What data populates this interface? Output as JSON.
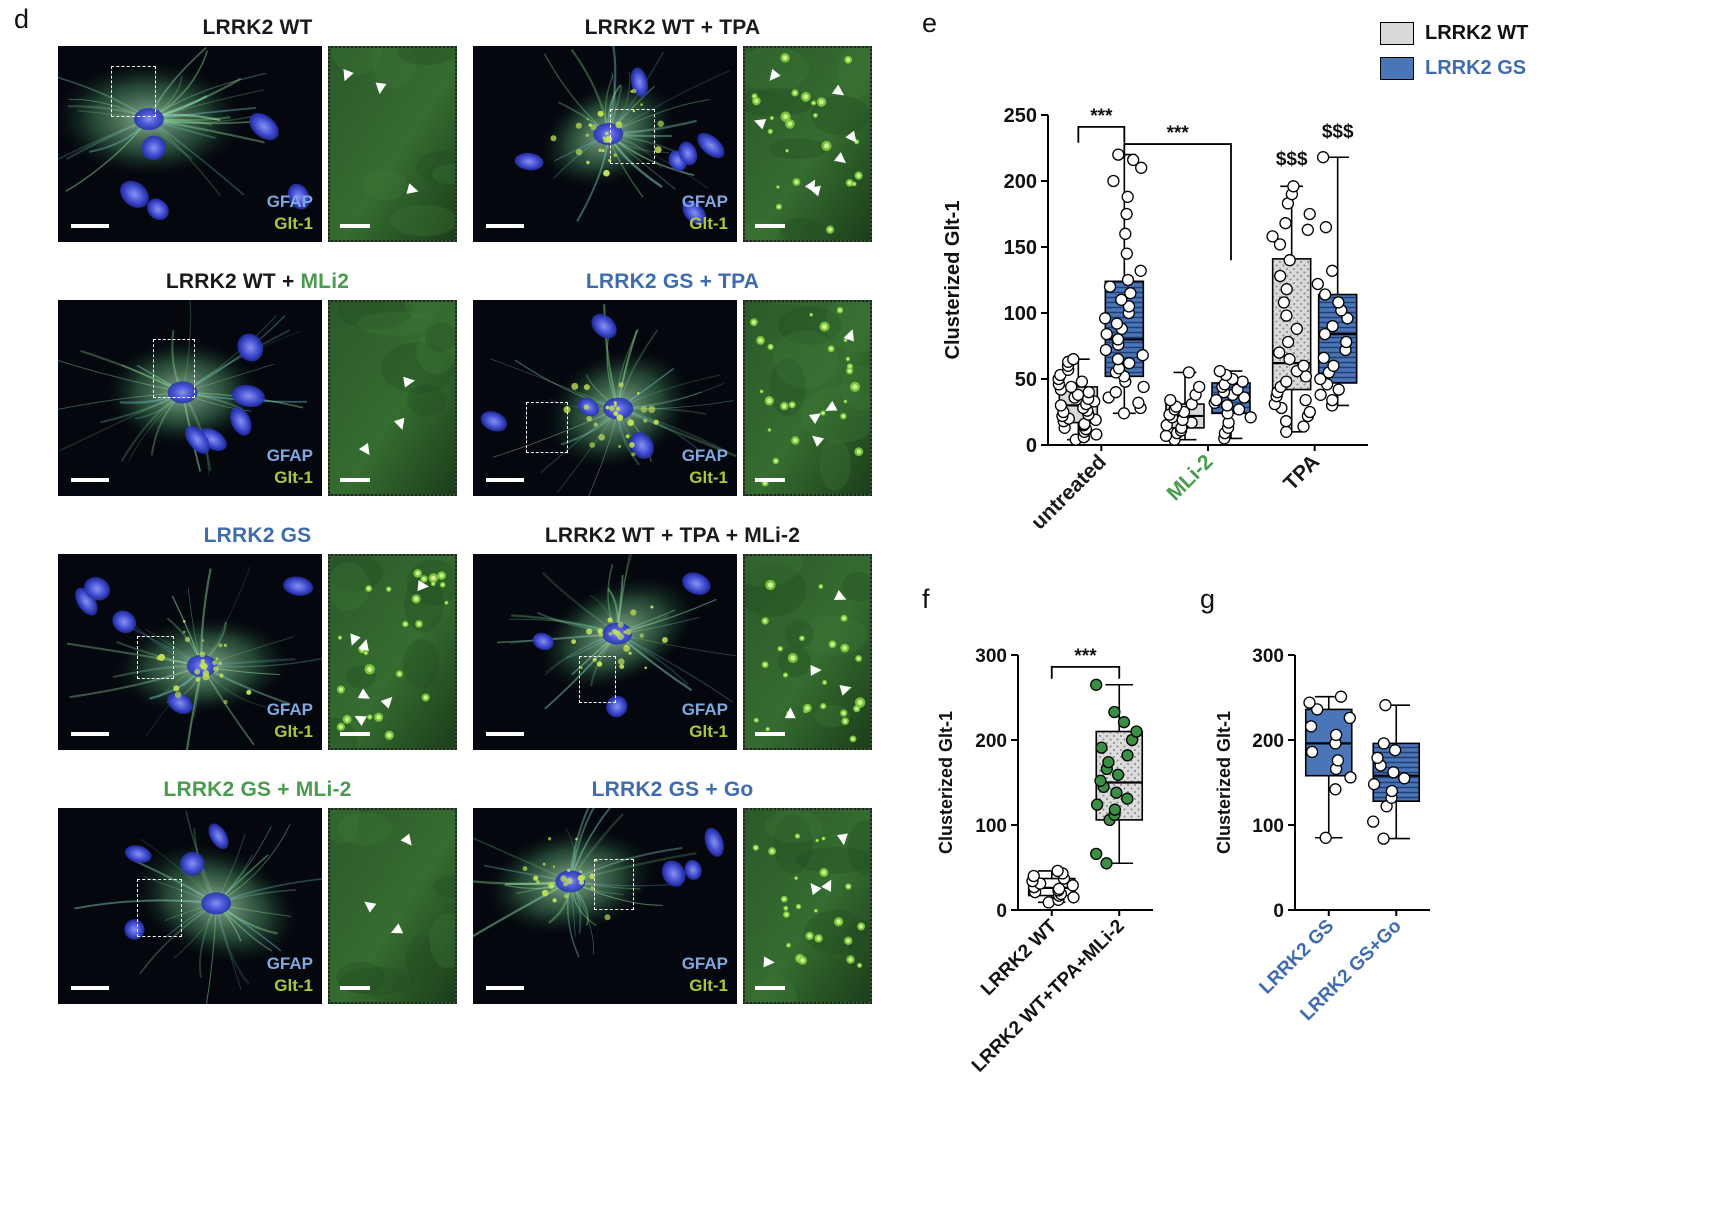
{
  "panel_d": {
    "label": "d",
    "channel_labels": {
      "gfap": "GFAP",
      "glt1": "Glt-1"
    },
    "colors": {
      "gfap_label": "#7fa9e0",
      "glt1_label": "#aac93f",
      "blue_title": "#3f6cae",
      "green_title": "#4a9b4f",
      "black_title": "#1a1a1a"
    },
    "images": [
      {
        "title_parts": [
          {
            "text": "LRRK2 WT",
            "color": "#1a1a1a"
          }
        ],
        "seed": 7,
        "nuclei": 5,
        "puncta_main": false,
        "puncta_inset": false,
        "arrows": 3,
        "roi": [
          20,
          10,
          17,
          26
        ]
      },
      {
        "title_parts": [
          {
            "text": "LRRK2 WT + TPA",
            "color": "#1a1a1a"
          }
        ],
        "seed": 13,
        "nuclei": 6,
        "puncta_main": true,
        "puncta_inset": true,
        "arrows": 7,
        "roi": [
          52,
          32,
          17,
          28
        ]
      },
      {
        "title_parts": [
          {
            "text": "LRRK2 WT + ",
            "color": "#1a1a1a"
          },
          {
            "text": "MLi2",
            "color": "#4a9b4f"
          }
        ],
        "seed": 21,
        "nuclei": 5,
        "puncta_main": false,
        "puncta_inset": false,
        "arrows": 3,
        "roi": [
          36,
          20,
          16,
          30
        ]
      },
      {
        "title_parts": [
          {
            "text": "LRRK2 GS + TPA",
            "color": "#3f6cae"
          }
        ],
        "seed": 5,
        "nuclei": 4,
        "puncta_main": true,
        "puncta_inset": true,
        "arrows": 4,
        "roi": [
          20,
          52,
          16,
          26
        ]
      },
      {
        "title_parts": [
          {
            "text": "LRRK2 GS",
            "color": "#3f6cae"
          }
        ],
        "seed": 31,
        "nuclei": 5,
        "puncta_main": true,
        "puncta_inset": true,
        "arrows": 6,
        "roi": [
          30,
          42,
          14,
          22
        ]
      },
      {
        "title_parts": [
          {
            "text": "LRRK2 WT + TPA + MLi-2",
            "color": "#1a1a1a"
          }
        ],
        "seed": 17,
        "nuclei": 3,
        "puncta_main": true,
        "puncta_inset": true,
        "arrows": 4,
        "roi": [
          40,
          52,
          14,
          24
        ]
      },
      {
        "title_parts": [
          {
            "text": "LRRK2 GS + MLi-2",
            "color": "#4a9b4f"
          }
        ],
        "seed": 41,
        "nuclei": 4,
        "puncta_main": false,
        "puncta_inset": false,
        "arrows": 3,
        "roi": [
          30,
          36,
          17,
          30
        ]
      },
      {
        "title_parts": [
          {
            "text": "LRRK2 GS + Go",
            "color": "#3f6cae"
          }
        ],
        "seed": 23,
        "nuclei": 3,
        "puncta_main": true,
        "puncta_inset": true,
        "arrows": 4,
        "roi": [
          46,
          26,
          15,
          26
        ]
      }
    ]
  },
  "panel_e": {
    "label": "e",
    "legend": [
      {
        "label": "LRRK2 WT",
        "swatch_color": "#d9d9d9",
        "text_color": "#111111"
      },
      {
        "label": "LRRK2 GS",
        "swatch_color": "#4a76b8",
        "text_color": "#3f6cae"
      }
    ],
    "chart_data": {
      "type": "boxplot",
      "title": "",
      "ylabel": "Clusterized Glt-1",
      "ylim": [
        0,
        250
      ],
      "yticks": [
        0,
        50,
        100,
        150,
        200,
        250
      ],
      "groups": [
        {
          "label": "untreated",
          "label_color": "#1a1a1a",
          "boxes": [
            {
              "series": "LRRK2 WT",
              "fill": "#d9d9d9",
              "pattern": "none",
              "point_fill": "#ffffff",
              "stats": {
                "min": 4,
                "q1": 17,
                "median": 30,
                "q3": 44,
                "max": 65
              },
              "points": [
                4,
                6,
                8,
                10,
                12,
                13,
                15,
                16,
                18,
                19,
                20,
                22,
                23,
                25,
                26,
                28,
                30,
                31,
                33,
                35,
                36,
                38,
                40,
                42,
                44,
                46,
                48,
                50,
                53,
                57,
                60,
                63,
                65
              ]
            },
            {
              "series": "LRRK2 GS",
              "fill": "#4a76b8",
              "pattern": "hlines",
              "point_fill": "#ffffff",
              "stats": {
                "min": 24,
                "q1": 52,
                "median": 80,
                "q3": 124,
                "max": 220
              },
              "points": [
                24,
                28,
                32,
                36,
                40,
                44,
                48,
                52,
                55,
                58,
                62,
                65,
                68,
                72,
                76,
                80,
                84,
                88,
                92,
                96,
                100,
                105,
                110,
                115,
                120,
                125,
                132,
                145,
                160,
                175,
                188,
                200,
                210,
                216,
                220
              ]
            }
          ]
        },
        {
          "label": "MLi-2",
          "label_color": "#4a9b4f",
          "boxes": [
            {
              "series": "LRRK2 WT",
              "fill": "#d9d9d9",
              "pattern": "none",
              "point_fill": "#ffffff",
              "stats": {
                "min": 4,
                "q1": 13,
                "median": 22,
                "q3": 31,
                "max": 55
              },
              "points": [
                4,
                7,
                9,
                11,
                13,
                15,
                17,
                19,
                21,
                23,
                25,
                27,
                29,
                31,
                34,
                38,
                44,
                55
              ]
            },
            {
              "series": "LRRK2 GS",
              "fill": "#4a76b8",
              "pattern": "hlines",
              "point_fill": "#ffffff",
              "stats": {
                "min": 5,
                "q1": 24,
                "median": 37,
                "q3": 47,
                "max": 56
              },
              "points": [
                5,
                9,
                13,
                17,
                21,
                24,
                27,
                30,
                32,
                34,
                36,
                38,
                40,
                42,
                44,
                46,
                48,
                50,
                53,
                56
              ]
            }
          ]
        },
        {
          "label": "TPA",
          "label_color": "#1a1a1a",
          "boxes": [
            {
              "series": "LRRK2 WT",
              "fill": "#d9d9d9",
              "pattern": "dots",
              "point_fill": "#ffffff",
              "stats": {
                "min": 10,
                "q1": 42,
                "median": 62,
                "q3": 141,
                "max": 196
              },
              "points": [
                10,
                14,
                18,
                22,
                25,
                28,
                31,
                34,
                37,
                40,
                44,
                48,
                52,
                56,
                60,
                65,
                70,
                78,
                88,
                98,
                108,
                118,
                128,
                140,
                152,
                158,
                163,
                168,
                175,
                183,
                190,
                196
              ]
            },
            {
              "series": "LRRK2 GS",
              "fill": "#4a76b8",
              "pattern": "hlines",
              "point_fill": "#ffffff",
              "stats": {
                "min": 30,
                "q1": 47,
                "median": 84,
                "q3": 114,
                "max": 218
              },
              "points": [
                30,
                34,
                38,
                42,
                46,
                50,
                55,
                60,
                66,
                72,
                78,
                84,
                90,
                96,
                102,
                108,
                114,
                122,
                132,
                165,
                218
              ]
            }
          ]
        }
      ],
      "annotations": [
        {
          "type": "bracket",
          "x1": [
            0,
            0
          ],
          "x2": [
            0,
            1
          ],
          "y": 241,
          "drop1": 12,
          "drop2": 12,
          "label": "***"
        },
        {
          "type": "bracket",
          "x1": [
            0,
            1
          ],
          "x2": [
            1,
            1
          ],
          "y": 228,
          "drop1": 10,
          "drop2": 88,
          "label": "***"
        },
        {
          "type": "text",
          "x": [
            2,
            0
          ],
          "y": 212,
          "label": "$$$"
        },
        {
          "type": "text",
          "x": [
            2,
            1
          ],
          "y": 233,
          "label": "$$$"
        }
      ]
    }
  },
  "panel_f": {
    "label": "f",
    "chart_data": {
      "type": "boxplot",
      "title": "",
      "ylabel": "Clusterized Glt-1",
      "ylim": [
        0,
        300
      ],
      "yticks": [
        0,
        100,
        200,
        300
      ],
      "groups": [
        {
          "label": "LRRK2 WT",
          "label_color": "#111111",
          "boxes": [
            {
              "series": "LRRK2 WT",
              "fill": "#ffffff",
              "pattern": "none",
              "point_fill": "#ffffff",
              "stats": {
                "min": 9,
                "q1": 17,
                "median": 26,
                "q3": 37,
                "max": 46
              },
              "points": [
                9,
                12,
                15,
                17,
                19,
                21,
                23,
                25,
                27,
                29,
                31,
                34,
                37,
                40,
                43,
                46
              ]
            }
          ]
        },
        {
          "label": "LRRK2 WT+TPA+MLi-2",
          "label_color": "#111111",
          "boxes": [
            {
              "series": "LRRK2 WT+TPA+MLi-2",
              "fill": "#dcdcdc",
              "pattern": "dots",
              "point_fill": "#3a8f44",
              "stats": {
                "min": 55,
                "q1": 106,
                "median": 150,
                "q3": 210,
                "max": 265
              },
              "points": [
                55,
                66,
                106,
                112,
                118,
                124,
                131,
                138,
                145,
                152,
                159,
                166,
                174,
                182,
                191,
                200,
                210,
                221,
                233,
                265
              ]
            }
          ]
        }
      ],
      "annotations": [
        {
          "type": "bracket",
          "x1": [
            0,
            0
          ],
          "x2": [
            1,
            0
          ],
          "y": 286,
          "drop1": 14,
          "drop2": 14,
          "label": "***"
        }
      ]
    }
  },
  "panel_g": {
    "label": "g",
    "chart_data": {
      "type": "boxplot",
      "title": "",
      "ylabel": "Clusterized Glt-1",
      "ylim": [
        0,
        300
      ],
      "yticks": [
        0,
        100,
        200,
        300
      ],
      "groups": [
        {
          "label": "LRRK2 GS",
          "label_color": "#3f6cae",
          "boxes": [
            {
              "series": "LRRK2 GS",
              "fill": "#4a76b8",
              "pattern": "none",
              "point_fill": "#ffffff",
              "stats": {
                "min": 85,
                "q1": 158,
                "median": 196,
                "q3": 236,
                "max": 251
              },
              "points": [
                85,
                142,
                156,
                166,
                176,
                186,
                196,
                206,
                216,
                226,
                236,
                244,
                251
              ]
            }
          ]
        },
        {
          "label": "LRRK2 GS+Go",
          "label_color": "#3f6cae",
          "boxes": [
            {
              "series": "LRRK2 GS+Go",
              "fill": "#4a76b8",
              "pattern": "hlines",
              "point_fill": "#ffffff",
              "stats": {
                "min": 84,
                "q1": 128,
                "median": 158,
                "q3": 196,
                "max": 241
              },
              "points": [
                84,
                104,
                122,
                132,
                140,
                148,
                155,
                162,
                170,
                179,
                188,
                196,
                241
              ]
            }
          ]
        }
      ],
      "annotations": []
    }
  }
}
